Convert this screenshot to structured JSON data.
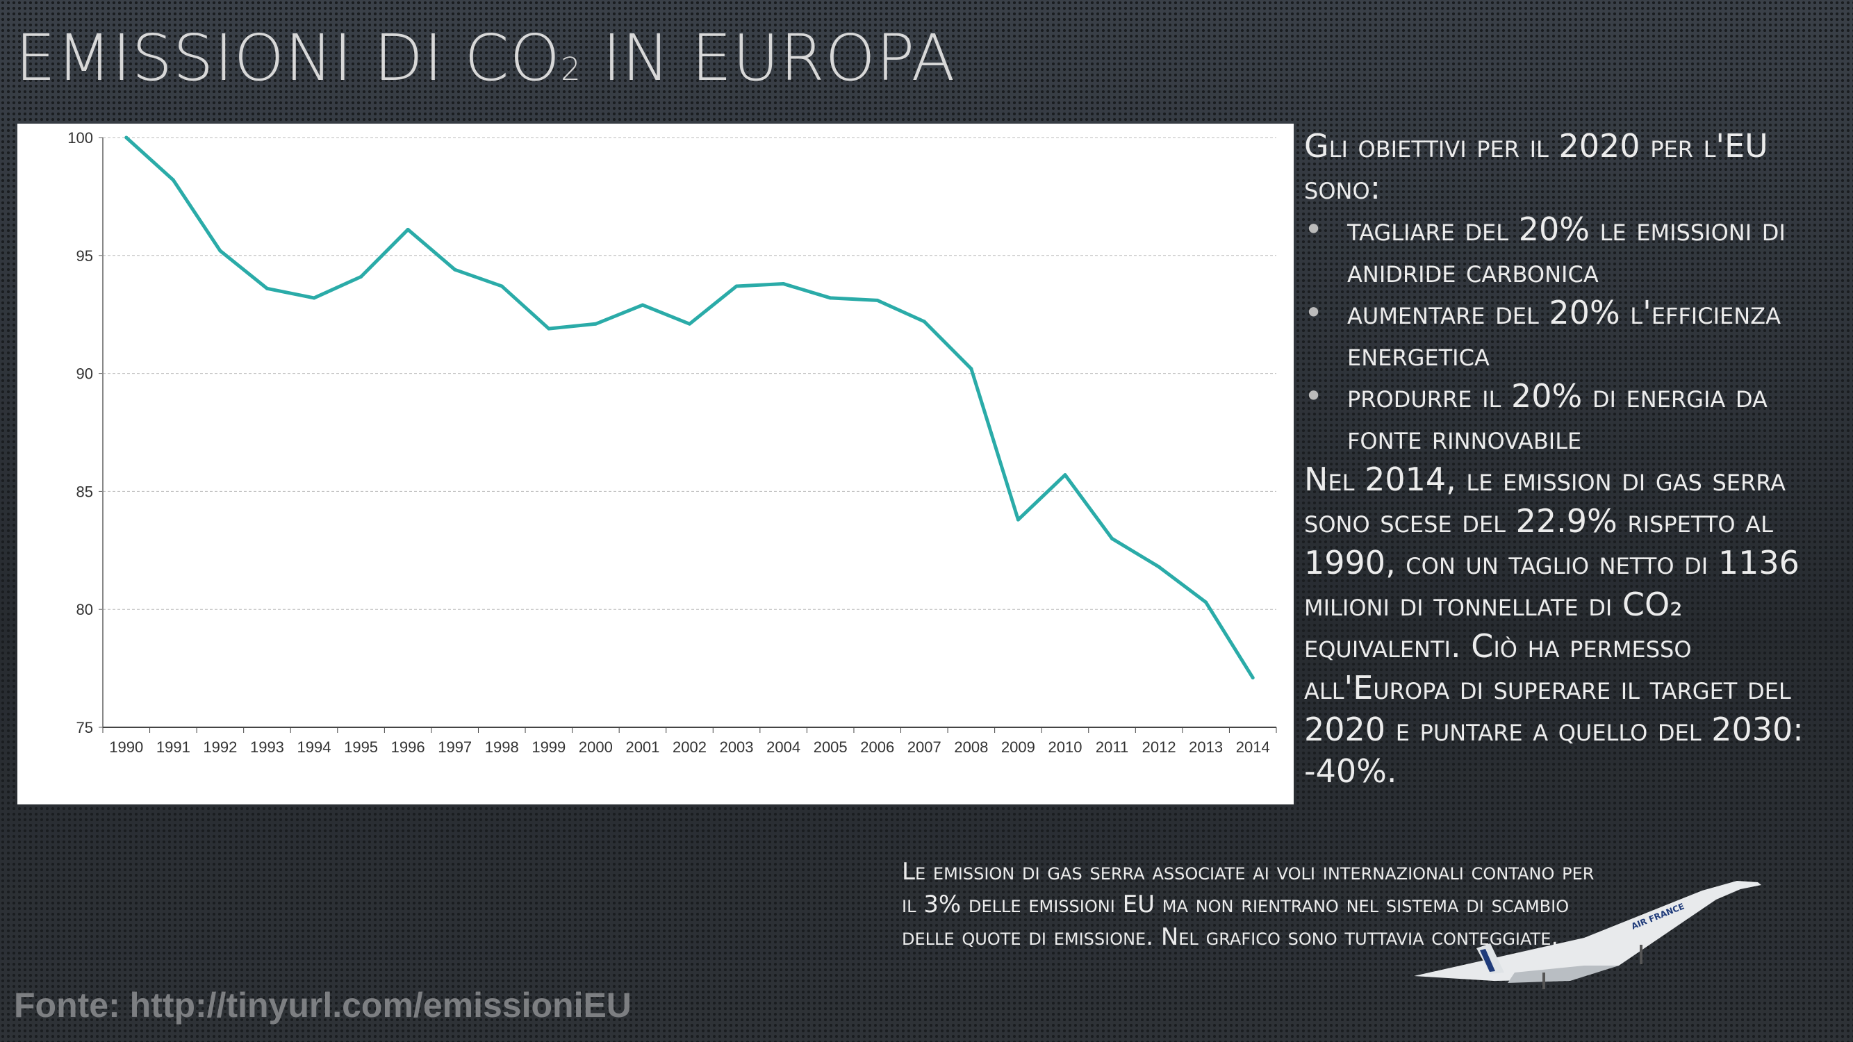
{
  "title": {
    "main": "EMISSIONI DI CO",
    "sub": "2",
    "rest": " IN EUROPA"
  },
  "side_text": {
    "intro": "Gli obiettivi per il 2020 per l'EU sono:",
    "bullets": [
      "tagliare del 20% le emissioni di anidride carbonica",
      "aumentare del 20% l'efficienza energetica",
      "produrre il 20% di energia da fonte rinnovabile"
    ],
    "paragraph": "Nel 2014, le emission di gas serra sono scese del 22.9% rispetto al 1990, con un taglio netto di 1136 milioni di tonnellate di CO₂ equivalenti. Ciò ha permesso all'Europa di superare il target del 2020 e puntare a quello del 2030: -40%."
  },
  "note": "Le emission di gas serra associate ai voli internazionali contano per il 3% delle emissioni EU ma non rientrano nel sistema di scambio delle quote di emissione. Nel grafico sono tuttavia conteggiate.",
  "source": "Fonte: http://tinyurl.com/emissioniEU",
  "plane_livery": "AIR FRANCE",
  "chart_data": {
    "type": "line",
    "title": "",
    "xlabel": "",
    "ylabel": "",
    "categories": [
      "1990",
      "1991",
      "1992",
      "1993",
      "1994",
      "1995",
      "1996",
      "1997",
      "1998",
      "1999",
      "2000",
      "2001",
      "2002",
      "2003",
      "2004",
      "2005",
      "2006",
      "2007",
      "2008",
      "2009",
      "2010",
      "2011",
      "2012",
      "2013",
      "2014"
    ],
    "values": [
      100,
      98.2,
      95.2,
      93.6,
      93.2,
      94.1,
      96.1,
      94.4,
      93.7,
      91.9,
      92.1,
      92.9,
      92.1,
      93.7,
      93.8,
      93.2,
      93.1,
      92.2,
      90.2,
      83.8,
      85.7,
      83.0,
      81.8,
      80.3,
      77.1
    ],
    "ylim": [
      75,
      100
    ],
    "yticks": [
      75,
      80,
      85,
      90,
      95,
      100
    ],
    "grid": true,
    "line_color": "#2aaba8"
  }
}
